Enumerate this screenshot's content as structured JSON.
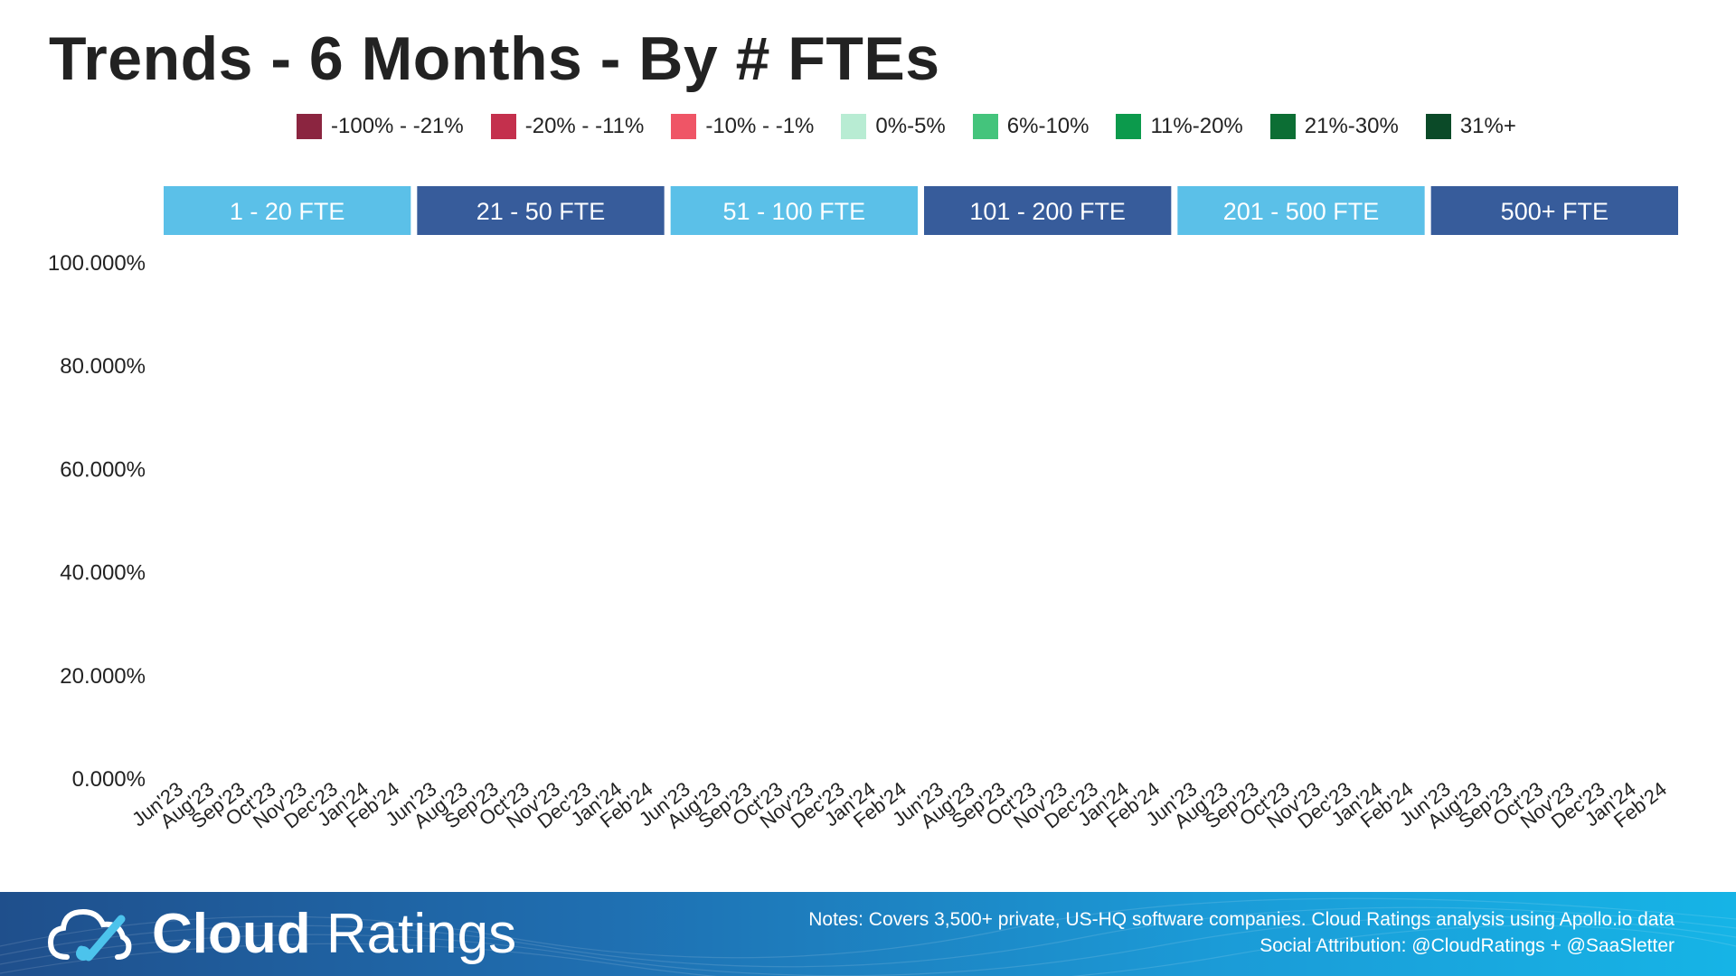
{
  "title": "Trends - 6 Months - By # FTEs",
  "legend": [
    {
      "label": "-100% - -21%",
      "color": "#8b2540"
    },
    {
      "label": "-20% - -11%",
      "color": "#c4304d"
    },
    {
      "label": "-10% - -1%",
      "color": "#ef5566"
    },
    {
      "label": "0%-5%",
      "color": "#b8ecd3"
    },
    {
      "label": "6%-10%",
      "color": "#44c47c"
    },
    {
      "label": "11%-20%",
      "color": "#0c9a4c"
    },
    {
      "label": "21%-30%",
      "color": "#0c6e34"
    },
    {
      "label": "31%+",
      "color": "#0b4a28"
    }
  ],
  "chart_data": {
    "type": "bar",
    "stacked": true,
    "title": "Trends - 6 Months - By # FTEs",
    "panels": [
      {
        "label": "1 - 20 FTE",
        "color": "#5bc0e8"
      },
      {
        "label": "21 - 50 FTE",
        "color": "#375c9b"
      },
      {
        "label": "51 - 100 FTE",
        "color": "#5bc0e8"
      },
      {
        "label": "101 - 200 FTE",
        "color": "#375c9b"
      },
      {
        "label": "201 - 500 FTE",
        "color": "#5bc0e8"
      },
      {
        "label": "500+ FTE",
        "color": "#375c9b"
      }
    ],
    "categories": [
      "Jun'23",
      "Aug'23",
      "Sep'23",
      "Oct'23",
      "Nov'23",
      "Dec'23",
      "Jan'24",
      "Feb'24"
    ],
    "series": [],
    "ylim": [
      0,
      100
    ],
    "y_ticks": [
      "100.000%",
      "80.000%",
      "60.000%",
      "40.000%",
      "20.000%",
      "0.000%"
    ],
    "xlabel": "",
    "ylabel": "",
    "legend_position": "top",
    "grid": false
  },
  "footer": {
    "brand_bold": "Cloud",
    "brand_light": "Ratings",
    "notes": "Notes: Covers 3,500+ private, US-HQ software companies. Cloud Ratings analysis using Apollo.io data",
    "attribution": "Social Attribution: @CloudRatings + @SaaSletter"
  }
}
